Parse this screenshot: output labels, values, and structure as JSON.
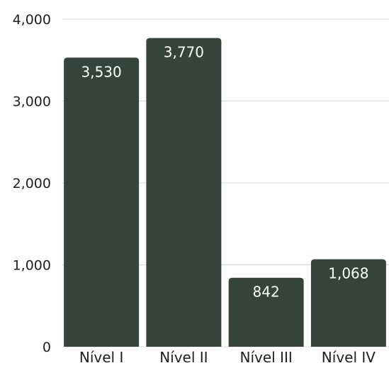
{
  "chart_data": {
    "type": "bar",
    "categories": [
      "Nível I",
      "Nível II",
      "Nível III",
      "Nível IV"
    ],
    "values": [
      3530,
      3770,
      842,
      1068
    ],
    "data_labels": [
      "3,530",
      "3,770",
      "842",
      "1,068"
    ],
    "title": "",
    "xlabel": "",
    "ylabel": "",
    "ylim": [
      0,
      4000
    ],
    "y_ticks": [
      0,
      1000,
      2000,
      3000,
      4000
    ],
    "y_tick_labels": [
      "0",
      "1,000",
      "2,000",
      "3,000",
      "4,000"
    ],
    "grid": true,
    "legend": "none",
    "bar_color": "#35443a"
  }
}
